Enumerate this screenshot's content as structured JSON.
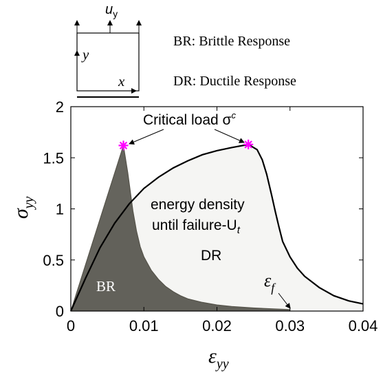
{
  "chart_data": {
    "type": "area",
    "xlabel": "ε",
    "xlabel_sub": "yy",
    "ylabel": "σ",
    "ylabel_sub": "yy",
    "xlim": [
      0,
      0.04
    ],
    "ylim": [
      0,
      2
    ],
    "xticks": [
      "0",
      "0.01",
      "0.02",
      "0.03",
      "0.04"
    ],
    "yticks": [
      "0",
      "0.5",
      "1",
      "1.5",
      "2"
    ],
    "grid": false,
    "legend": {
      "br": "BR: Brittle Response",
      "dr": "DR: Ductile Response"
    },
    "annotations": {
      "critical_load": "Critical load σ",
      "critical_load_sup": "c",
      "energy_line1": "energy density",
      "energy_line2": "until failure-U",
      "energy_sub": "t",
      "dr_label": "DR",
      "br_label": "BR",
      "ef_label": "ε",
      "ef_sub": "f"
    },
    "critical_points": [
      {
        "x": 0.0072,
        "y": 1.62
      },
      {
        "x": 0.0243,
        "y": 1.63
      }
    ],
    "series": [
      {
        "name": "BR",
        "color": "#3a382e",
        "x": [
          0,
          0.0072,
          0.0078,
          0.0085,
          0.009,
          0.0095,
          0.01,
          0.011,
          0.012,
          0.013,
          0.014,
          0.015,
          0.016,
          0.018,
          0.02,
          0.022,
          0.025,
          0.028,
          0.03
        ],
        "y": [
          0,
          1.62,
          1.35,
          0.98,
          0.78,
          0.63,
          0.53,
          0.4,
          0.31,
          0.24,
          0.19,
          0.15,
          0.12,
          0.085,
          0.06,
          0.045,
          0.03,
          0.02,
          0.015
        ]
      },
      {
        "name": "DR",
        "color": "#000000",
        "x": [
          0,
          0.002,
          0.004,
          0.006,
          0.008,
          0.01,
          0.012,
          0.014,
          0.016,
          0.018,
          0.02,
          0.022,
          0.0243,
          0.0255,
          0.0262,
          0.0268,
          0.0275,
          0.028,
          0.0285,
          0.029,
          0.03,
          0.031,
          0.032,
          0.034,
          0.036,
          0.038,
          0.04
        ],
        "y": [
          0,
          0.32,
          0.62,
          0.86,
          1.05,
          1.2,
          1.31,
          1.4,
          1.47,
          1.53,
          1.57,
          1.6,
          1.63,
          1.58,
          1.48,
          1.34,
          1.13,
          0.97,
          0.82,
          0.68,
          0.53,
          0.42,
          0.34,
          0.23,
          0.15,
          0.1,
          0.07
        ]
      }
    ]
  },
  "inset": {
    "top_label": "u",
    "top_sub": "y",
    "y_label": "y",
    "x_label": "x"
  }
}
